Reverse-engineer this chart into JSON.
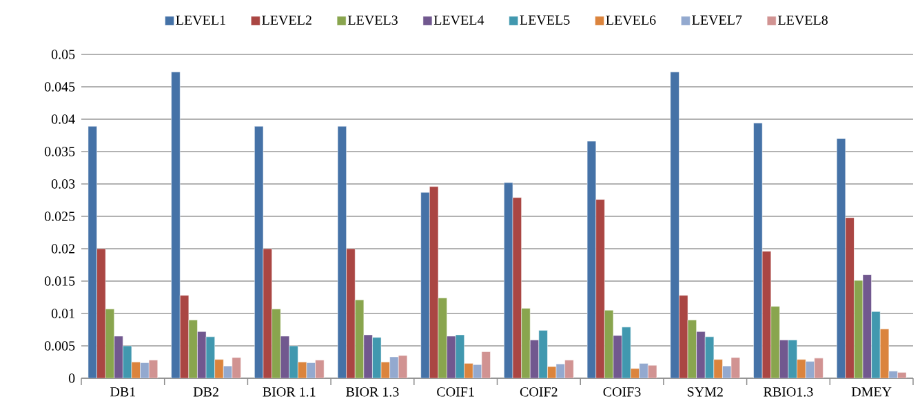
{
  "chart_data": {
    "type": "bar",
    "categories": [
      "DB1",
      "DB2",
      "BIOR 1.1",
      "BIOR 1.3",
      "COIF1",
      "COIF2",
      "COIF3",
      "SYM2",
      "RBIO1.3",
      "DMEY"
    ],
    "series": [
      {
        "name": "LEVEL1",
        "color": "#4572a7",
        "values": [
          0.0389,
          0.0473,
          0.0389,
          0.0389,
          0.0287,
          0.0302,
          0.0366,
          0.0473,
          0.0394,
          0.037
        ]
      },
      {
        "name": "LEVEL2",
        "color": "#aa4643",
        "values": [
          0.02,
          0.0128,
          0.02,
          0.02,
          0.0296,
          0.0279,
          0.0276,
          0.0128,
          0.0196,
          0.0248
        ]
      },
      {
        "name": "LEVEL3",
        "color": "#89a54e",
        "values": [
          0.0107,
          0.009,
          0.0107,
          0.0121,
          0.0124,
          0.0108,
          0.0105,
          0.009,
          0.0111,
          0.0151
        ]
      },
      {
        "name": "LEVEL4",
        "color": "#71588f",
        "values": [
          0.0065,
          0.0072,
          0.0065,
          0.0067,
          0.0065,
          0.0059,
          0.0066,
          0.0072,
          0.0059,
          0.016
        ]
      },
      {
        "name": "LEVEL5",
        "color": "#4198af",
        "values": [
          0.005,
          0.0064,
          0.005,
          0.0063,
          0.0067,
          0.0074,
          0.0079,
          0.0064,
          0.0059,
          0.0103
        ]
      },
      {
        "name": "LEVEL6",
        "color": "#db843d",
        "values": [
          0.0025,
          0.0029,
          0.0025,
          0.0025,
          0.0023,
          0.0018,
          0.0015,
          0.0029,
          0.0029,
          0.0076
        ]
      },
      {
        "name": "LEVEL7",
        "color": "#93a9cf",
        "values": [
          0.0024,
          0.0019,
          0.0024,
          0.0033,
          0.0021,
          0.0022,
          0.0023,
          0.0019,
          0.0026,
          0.0011
        ]
      },
      {
        "name": "LEVEL8",
        "color": "#d19392",
        "values": [
          0.0028,
          0.0032,
          0.0028,
          0.0035,
          0.0041,
          0.0028,
          0.002,
          0.0032,
          0.0031,
          0.0009
        ]
      }
    ],
    "ylim": [
      0,
      0.05
    ],
    "yticks": [
      0,
      0.005,
      0.01,
      0.015,
      0.02,
      0.025,
      0.03,
      0.035,
      0.04,
      0.045,
      0.05
    ],
    "grid": "y",
    "legend": "top"
  }
}
